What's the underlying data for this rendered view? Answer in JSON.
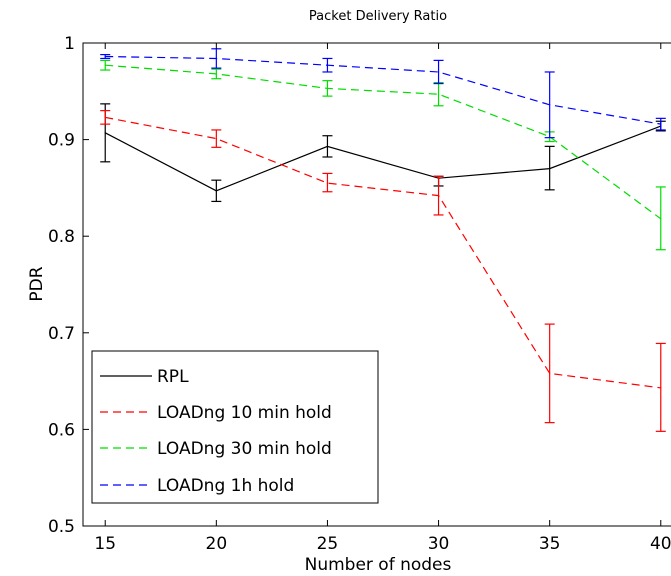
{
  "chart_data": {
    "type": "line",
    "title": "Packet Delivery Ratio",
    "xlabel": "Number of nodes",
    "ylabel": "PDR",
    "x": [
      15,
      20,
      25,
      30,
      35,
      40
    ],
    "xticks": [
      "15",
      "20",
      "25",
      "30",
      "35",
      "40"
    ],
    "yticks": [
      "0.5",
      "0.6",
      "0.7",
      "0.8",
      "0.9",
      "1"
    ],
    "xlim": [
      14,
      41
    ],
    "ylim": [
      0.5,
      1.0
    ],
    "grid": false,
    "legend_position": "bottom-left",
    "series": [
      {
        "name": "RPL",
        "color": "#000000",
        "dash": "solid",
        "values": [
          0.907,
          0.847,
          0.893,
          0.86,
          0.87,
          0.914
        ],
        "err_low": [
          0.877,
          0.836,
          0.882,
          0.852,
          0.848,
          0.909
        ],
        "err_high": [
          0.937,
          0.858,
          0.904,
          0.862,
          0.893,
          0.919
        ]
      },
      {
        "name": "LOADng 10 min hold",
        "color": "#ff0000",
        "dash": "dashed",
        "values": [
          0.923,
          0.901,
          0.855,
          0.842,
          0.658,
          0.643
        ],
        "err_low": [
          0.916,
          0.892,
          0.846,
          0.822,
          0.607,
          0.598
        ],
        "err_high": [
          0.93,
          0.91,
          0.865,
          0.862,
          0.709,
          0.689
        ]
      },
      {
        "name": "LOADng 30 min hold",
        "color": "#00dd00",
        "dash": "dashed",
        "values": [
          0.977,
          0.968,
          0.953,
          0.947,
          0.903,
          0.818
        ],
        "err_low": [
          0.972,
          0.963,
          0.945,
          0.935,
          0.898,
          0.786
        ],
        "err_high": [
          0.982,
          0.973,
          0.961,
          0.959,
          0.908,
          0.851
        ]
      },
      {
        "name": "LOADng 1h hold",
        "color": "#0000ff",
        "dash": "dashed",
        "values": [
          0.986,
          0.984,
          0.977,
          0.97,
          0.936,
          0.916
        ],
        "err_low": [
          0.984,
          0.974,
          0.97,
          0.958,
          0.902,
          0.91
        ],
        "err_high": [
          0.988,
          0.994,
          0.984,
          0.982,
          0.97,
          0.922
        ]
      }
    ]
  }
}
